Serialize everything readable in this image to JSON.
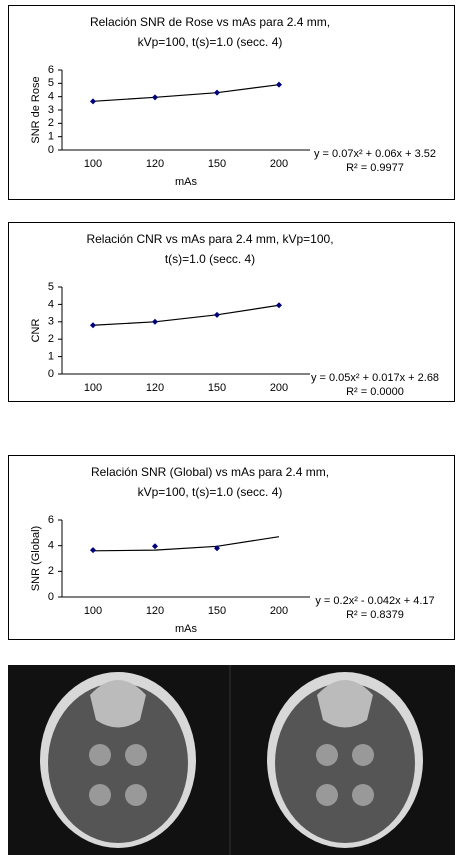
{
  "chart_data": [
    {
      "type": "line",
      "title": [
        "Relación SNR de Rose vs mAs para 2.4 mm,",
        "kVp=100, t(s)=1.0 (secc. 4)"
      ],
      "y_label": "SNR de Rose",
      "x_label": "mAs",
      "categories": [
        "100",
        "120",
        "150",
        "200"
      ],
      "series": [
        {
          "color": "#00007a",
          "values": [
            3.65,
            3.95,
            4.3,
            4.9
          ]
        }
      ],
      "ylim": [
        0,
        6
      ],
      "yticks": [
        0,
        1,
        2,
        3,
        4,
        5,
        6
      ],
      "equation": "y = 0.07x² + 0.06x + 3.52",
      "r2": "R² = 0.9977"
    },
    {
      "type": "line",
      "title": [
        "Relación CNR vs mAs para 2.4 mm, kVp=100,",
        "t(s)=1.0 (secc. 4)"
      ],
      "y_label": "CNR",
      "x_label": "mAs",
      "categories": [
        "100",
        "120",
        "150",
        "200"
      ],
      "series": [
        {
          "color": "#00007a",
          "values": [
            2.8,
            3.0,
            3.4,
            3.95
          ]
        }
      ],
      "ylim": [
        0,
        5
      ],
      "yticks": [
        0,
        1,
        2,
        3,
        4,
        5
      ],
      "equation": "y = 0.05x² + 0.017x + 2.68",
      "r2": "R² = 0.0000"
    },
    {
      "type": "scatter",
      "title": [
        "Relación SNR (Global) vs mAs para 2.4 mm,",
        "kVp=100, t(s)=1.0 (secc. 4)"
      ],
      "y_label": "SNR (Global)",
      "x_label": "mAs",
      "categories": [
        "100",
        "120",
        "150",
        "200"
      ],
      "series": [
        {
          "color": "#00007a",
          "values": [
            3.65,
            3.95,
            3.8,
            null
          ],
          "trend_values": [
            3.6,
            3.65,
            3.95,
            4.7
          ]
        }
      ],
      "ylim": [
        0,
        6
      ],
      "yticks": [
        0,
        2,
        4,
        6
      ],
      "equation": "y = 0.2x² - 0.042x + 4.17",
      "r2": "R² = 0.8379"
    }
  ]
}
